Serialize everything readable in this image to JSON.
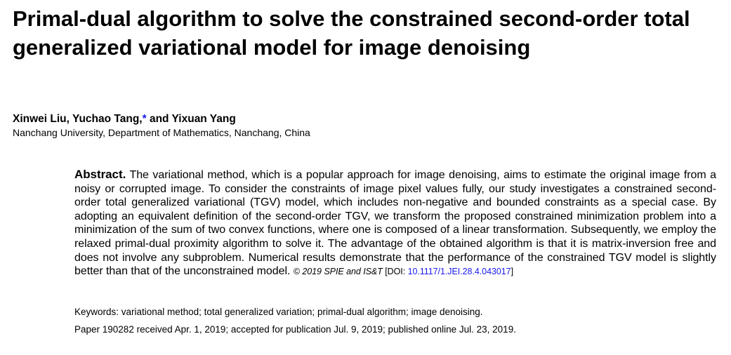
{
  "paper": {
    "title": "Primal-dual algorithm to solve the constrained second-order total generalized variational model for image denoising",
    "authors": "Xinwei Liu, Yuchao Tang,",
    "author_star": "*",
    "authors_end": " and Yixuan Yang",
    "affiliation": "Nanchang University, Department of Mathematics, Nanchang, China",
    "abstract_label": "Abstract.",
    "abstract_text": " The variational method, which is a popular approach for image denoising, aims to estimate the original image from a noisy or corrupted image. To consider the constraints of image pixel values fully, our study investigates a constrained second-order total generalized variational (TGV) model, which includes non-negative and bounded constraints as a special case. By adopting an equivalent definition of the second-order TGV, we transform the proposed constrained minimization problem into a minimization of the sum of two convex functions, where one is composed of a linear transformation. Subsequently, we employ the relaxed primal-dual proximity algorithm to solve it. The advantage of the obtained algorithm is that it is matrix-inversion free and does not involve any subproblem. Numerical results demonstrate that the performance of the constrained TGV model is slightly better than that of the unconstrained model. ",
    "copyright": "© 2019 SPIE and IS&T",
    "doi_prefix": " [DOI: ",
    "doi": "10.1117/1.JEI.28.4.043017",
    "doi_suffix": "]",
    "keywords": "Keywords: variational method; total generalized variation; primal-dual algorithm; image denoising.",
    "history": "Paper 190282 received Apr. 1, 2019; accepted for publication Jul. 9, 2019; published online Jul. 23, 2019."
  }
}
